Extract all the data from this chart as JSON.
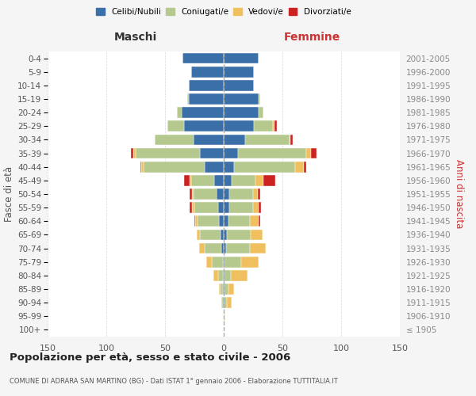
{
  "age_groups": [
    "100+",
    "95-99",
    "90-94",
    "85-89",
    "80-84",
    "75-79",
    "70-74",
    "65-69",
    "60-64",
    "55-59",
    "50-54",
    "45-49",
    "40-44",
    "35-39",
    "30-34",
    "25-29",
    "20-24",
    "15-19",
    "10-14",
    "5-9",
    "0-4"
  ],
  "birth_years": [
    "≤ 1905",
    "1906-1910",
    "1911-1915",
    "1916-1920",
    "1921-1925",
    "1926-1930",
    "1931-1935",
    "1936-1940",
    "1941-1945",
    "1946-1950",
    "1951-1955",
    "1956-1960",
    "1961-1965",
    "1966-1970",
    "1971-1975",
    "1976-1980",
    "1981-1985",
    "1986-1990",
    "1991-1995",
    "1996-2000",
    "2001-2005"
  ],
  "colors": {
    "celibe": "#3a6fa8",
    "coniugato": "#b5c98e",
    "vedovo": "#f0c060",
    "divorziato": "#cc2222"
  },
  "maschi": {
    "celibe": [
      0,
      0,
      1,
      1,
      1,
      1,
      2,
      3,
      4,
      5,
      6,
      8,
      16,
      20,
      26,
      34,
      36,
      30,
      30,
      28,
      35
    ],
    "coniugato": [
      0,
      0,
      1,
      2,
      4,
      9,
      14,
      17,
      18,
      20,
      20,
      20,
      52,
      55,
      33,
      14,
      4,
      1,
      0,
      0,
      0
    ],
    "vedovo": [
      0,
      0,
      0,
      1,
      4,
      5,
      5,
      3,
      2,
      2,
      1,
      1,
      2,
      2,
      0,
      0,
      0,
      0,
      0,
      0,
      0
    ],
    "divorziato": [
      0,
      0,
      0,
      0,
      0,
      0,
      0,
      0,
      1,
      2,
      2,
      5,
      1,
      2,
      0,
      0,
      0,
      0,
      0,
      0,
      0
    ]
  },
  "femmine": {
    "celibe": [
      0,
      0,
      1,
      1,
      1,
      1,
      2,
      3,
      4,
      5,
      5,
      7,
      9,
      12,
      18,
      26,
      30,
      30,
      26,
      26,
      30
    ],
    "coniugato": [
      0,
      0,
      2,
      3,
      5,
      14,
      20,
      20,
      18,
      20,
      20,
      20,
      52,
      58,
      38,
      16,
      4,
      1,
      0,
      0,
      0
    ],
    "vedovo": [
      0,
      1,
      4,
      5,
      14,
      15,
      14,
      10,
      8,
      5,
      4,
      7,
      7,
      4,
      1,
      1,
      0,
      0,
      0,
      0,
      0
    ],
    "divorziato": [
      0,
      0,
      0,
      0,
      0,
      0,
      0,
      0,
      1,
      2,
      2,
      10,
      2,
      5,
      2,
      2,
      0,
      0,
      0,
      0,
      0
    ]
  },
  "xlim": 150,
  "title": "Popolazione per età, sesso e stato civile - 2006",
  "subtitle": "COMUNE DI ADRARA SAN MARTINO (BG) - Dati ISTAT 1° gennaio 2006 - Elaborazione TUTTITALIA.IT",
  "xlabel_left": "Maschi",
  "xlabel_right": "Femmine",
  "ylabel_left": "Fasce di età",
  "ylabel_right": "Anni di nascita",
  "maschi_color": "#333333",
  "femmine_color": "#cc3333",
  "bg_color": "#f5f5f5",
  "plot_bg": "#ffffff",
  "grid_color": "#cccccc",
  "tick_color": "#555555",
  "birth_year_color": "#888888"
}
